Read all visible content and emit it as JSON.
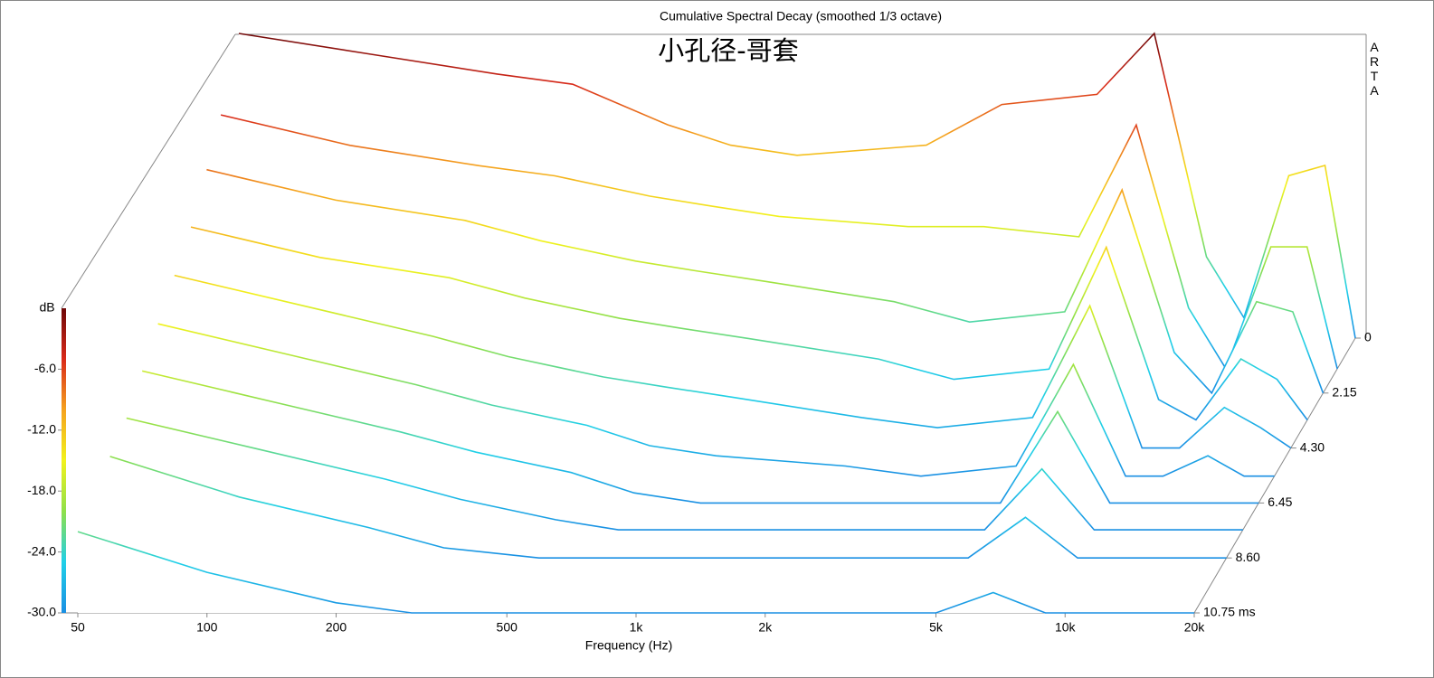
{
  "chart_data": {
    "type": "waterfall",
    "title": "Cumulative Spectral Decay (smoothed 1/3 octave)",
    "subtitle": "小孔径-哥套",
    "brand": "ARTA",
    "x_label": "Frequency (Hz)",
    "y_label": "dB",
    "log_x": true,
    "x": [
      50,
      100,
      200,
      300,
      500,
      700,
      1000,
      2000,
      3000,
      5000,
      6800,
      9000,
      11000,
      14000,
      17000,
      20000
    ],
    "xlim": [
      50,
      20000
    ],
    "xticks": [
      50,
      100,
      200,
      500,
      {
        "value": 1000,
        "label": "1k"
      },
      {
        "value": 2000,
        "label": "2k"
      },
      {
        "value": 5000,
        "label": "5k"
      },
      {
        "value": 10000,
        "label": "10k"
      },
      {
        "value": 20000,
        "label": "20k"
      }
    ],
    "ylim": [
      -30,
      0
    ],
    "yticks": [
      {
        "value": -30,
        "label": "-30.0"
      },
      {
        "value": -24,
        "label": "-24.0"
      },
      {
        "value": -18,
        "label": "-18.0"
      },
      {
        "value": -12,
        "label": "-12.0"
      },
      {
        "value": -6,
        "label": "-6.0"
      }
    ],
    "zlim": [
      0,
      10.75
    ],
    "zticks": [
      0,
      2.15,
      {
        "value": 4.3,
        "label": "4.30"
      },
      6.45,
      {
        "value": 8.6,
        "label": "8.60"
      },
      {
        "value": 10.75,
        "label": "10.75 ms"
      }
    ],
    "colormap": [
      "#1a8fe3",
      "#20d0e8",
      "#8fe04a",
      "#f2f21c",
      "#f5a21f",
      "#d92a1a",
      "#6e0808"
    ],
    "series": [
      {
        "name": "0",
        "time": 0,
        "values": [
          0,
          -2,
          -4,
          -5,
          -9,
          -11,
          -12,
          -11,
          -7,
          -6,
          0,
          -22,
          -28,
          -14,
          -13,
          -30
        ]
      },
      {
        "name": "1.2",
        "time": 1.2,
        "values": [
          -5,
          -8,
          -10,
          -11,
          -13,
          -14,
          -15,
          -16,
          -16,
          -17,
          -6,
          -24,
          -30,
          -18,
          -18,
          -30
        ]
      },
      {
        "name": "2.15",
        "time": 2.15,
        "values": [
          -8,
          -11,
          -13,
          -15,
          -17,
          -18,
          -19,
          -21,
          -23,
          -22,
          -10,
          -26,
          -30,
          -21,
          -22,
          -30
        ]
      },
      {
        "name": "3.2",
        "time": 3.2,
        "values": [
          -11,
          -14,
          -16,
          -18,
          -20,
          -21,
          -22,
          -24,
          -26,
          -25,
          -13,
          -28,
          -30,
          -24,
          -26,
          -30
        ]
      },
      {
        "name": "4.3",
        "time": 4.3,
        "values": [
          -13,
          -16,
          -19,
          -21,
          -23,
          -24,
          -25,
          -27,
          -28,
          -27,
          -16,
          -30,
          -30,
          -26,
          -28,
          -30
        ]
      },
      {
        "name": "5.4",
        "time": 5.4,
        "values": [
          -15,
          -18,
          -21,
          -23,
          -25,
          -27,
          -28,
          -29,
          -30,
          -29,
          -19,
          -30,
          -30,
          -28,
          -30,
          -30
        ]
      },
      {
        "name": "6.45",
        "time": 6.45,
        "values": [
          -17,
          -20,
          -23,
          -25,
          -27,
          -29,
          -30,
          -30,
          -30,
          -30,
          -21,
          -30,
          -30,
          -30,
          -30,
          -30
        ]
      },
      {
        "name": "7.5",
        "time": 7.5,
        "values": [
          -19,
          -22,
          -25,
          -27,
          -29,
          -30,
          -30,
          -30,
          -30,
          -30,
          -24,
          -30,
          -30,
          -30,
          -30,
          -30
        ]
      },
      {
        "name": "8.6",
        "time": 8.6,
        "values": [
          -20,
          -24,
          -27,
          -29,
          -30,
          -30,
          -30,
          -30,
          -30,
          -30,
          -26,
          -30,
          -30,
          -30,
          -30,
          -30
        ]
      },
      {
        "name": "10.75",
        "time": 10.75,
        "values": [
          -22,
          -26,
          -29,
          -30,
          -30,
          -30,
          -30,
          -30,
          -30,
          -30,
          -28,
          -30,
          -30,
          -30,
          -30,
          -30
        ]
      }
    ]
  }
}
